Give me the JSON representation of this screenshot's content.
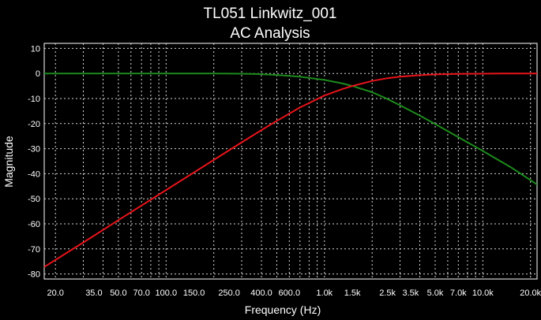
{
  "window": {
    "background": "#000000"
  },
  "chart_data": {
    "type": "line",
    "title": "TL051 Linkwitz_001",
    "subtitle": "AC Analysis",
    "xlabel": "Frequency (Hz)",
    "ylabel": "Magnitude",
    "x_scale": "log",
    "xlim": [
      17,
      22000
    ],
    "ylim": [
      -82,
      12
    ],
    "grid": true,
    "y_ticks": [
      10,
      0,
      -10,
      -20,
      -30,
      -40,
      -50,
      -60,
      -70,
      -80
    ],
    "y_tick_labels": [
      "10",
      "0",
      "-10",
      "-20",
      "-30",
      "-40",
      "-50",
      "-60",
      "-70",
      "-80"
    ],
    "x_ticks": [
      20,
      35,
      50,
      70,
      100,
      150,
      250,
      400,
      600,
      1000,
      1500,
      2500,
      3500,
      5000,
      7000,
      10000,
      20000
    ],
    "x_tick_labels": [
      "20.0",
      "35.0",
      "50.0",
      "70.0",
      "100.0",
      "150.0",
      "250.0",
      "400.0",
      "600.0",
      "1.0k",
      "1.5k",
      "2.5k",
      "3.5k",
      "5.0k",
      "7.0k",
      "10.0k",
      "20.0k"
    ],
    "series": [
      {
        "color": "#1c8a1c",
        "x": [
          17,
          30,
          50,
          100,
          200,
          300,
          400,
          500,
          700,
          1000,
          1300,
          1500,
          2000,
          2500,
          3000,
          4000,
          5000,
          7000,
          10000,
          15000,
          22000
        ],
        "y": [
          0,
          0,
          0,
          0,
          0,
          -0.1,
          -0.3,
          -0.6,
          -1.3,
          -2.6,
          -4.0,
          -5.0,
          -7.5,
          -10.2,
          -12.7,
          -16.8,
          -20.2,
          -25.4,
          -30.9,
          -37.4,
          -44.3
        ]
      },
      {
        "color": "#e8141a",
        "x": [
          17,
          30,
          50,
          100,
          200,
          300,
          400,
          500,
          700,
          1000,
          1300,
          1500,
          2000,
          2500,
          3000,
          4000,
          5000,
          7000,
          10000,
          15000,
          22000
        ],
        "y": [
          -77.2,
          -67.4,
          -58.5,
          -46.5,
          -34.5,
          -27.5,
          -22.6,
          -18.9,
          -13.6,
          -8.8,
          -6.2,
          -5.0,
          -3.0,
          -1.9,
          -1.3,
          -0.7,
          -0.4,
          -0.2,
          -0.1,
          0,
          0
        ]
      }
    ]
  }
}
